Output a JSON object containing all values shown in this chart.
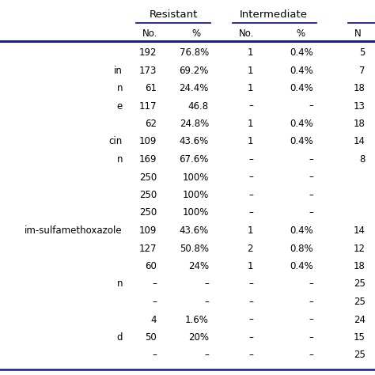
{
  "col_headers_level1": [
    "Resistant",
    "Intermediate"
  ],
  "col_headers_level2": [
    "No.",
    "%",
    "No.",
    "%",
    "N"
  ],
  "rows": [
    [
      "",
      "192",
      "76.8%",
      "1",
      "0.4%",
      "5"
    ],
    [
      "in",
      "173",
      "69.2%",
      "1",
      "0.4%",
      "7"
    ],
    [
      "n",
      "61",
      "24.4%",
      "1",
      "0.4%",
      "18"
    ],
    [
      "e",
      "117",
      "46.8",
      "–",
      "–",
      "13"
    ],
    [
      "",
      "62",
      "24.8%",
      "1",
      "0.4%",
      "18"
    ],
    [
      "cin",
      "109",
      "43.6%",
      "1",
      "0.4%",
      "14"
    ],
    [
      "n",
      "169",
      "67.6%",
      "–",
      "–",
      "8"
    ],
    [
      "",
      "250",
      "100%",
      "–",
      "–",
      ""
    ],
    [
      "",
      "250",
      "100%",
      "–",
      "–",
      ""
    ],
    [
      "",
      "250",
      "100%",
      "–",
      "–",
      ""
    ],
    [
      "im-sulfamethoxazole",
      "109",
      "43.6%",
      "1",
      "0.4%",
      "14"
    ],
    [
      "",
      "127",
      "50.8%",
      "2",
      "0.8%",
      "12"
    ],
    [
      "",
      "60",
      "24%",
      "1",
      "0.4%",
      "18"
    ],
    [
      "n",
      "–",
      "–",
      "–",
      "–",
      "25"
    ],
    [
      "",
      "–",
      "–",
      "–",
      "–",
      "25"
    ],
    [
      "",
      "4",
      "1.6%",
      "–",
      "–",
      "24"
    ],
    [
      "d",
      "50",
      "20%",
      "–",
      "–",
      "15"
    ],
    [
      "",
      "–",
      "–",
      "–",
      "–",
      "25"
    ]
  ],
  "bg_color": "#ffffff",
  "text_color": "#000000",
  "line_color": "#1a1a8c",
  "font_size": 8.5,
  "header_font_size": 9.5,
  "fig_width": 4.74,
  "fig_height": 4.74,
  "dpi": 100
}
